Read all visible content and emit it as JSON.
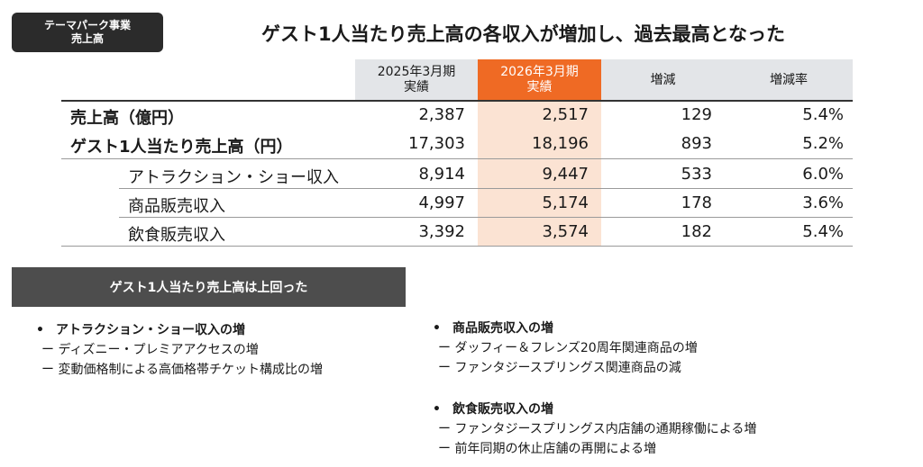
{
  "tag": {
    "line1": "テーマパーク事業",
    "line2": "売上高"
  },
  "title": "ゲスト1人当たり売上高の各収入が増加し、過去最高となった",
  "table": {
    "headers": [
      {
        "line1": "2025年3月期",
        "line2": "実績"
      },
      {
        "line1": "2026年3月期",
        "line2": "実績"
      },
      {
        "line1": "増減",
        "line2": ""
      },
      {
        "line1": "増減率",
        "line2": ""
      }
    ],
    "rows": [
      {
        "label": "売上高（億円）",
        "v1": "2,387",
        "v2": "2,517",
        "diff": "129",
        "rate": "5.4%"
      },
      {
        "label": "ゲスト1人当たり売上高（円）",
        "v1": "17,303",
        "v2": "18,196",
        "diff": "893",
        "rate": "5.2%"
      },
      {
        "label": "アトラクション・ショー収入",
        "v1": "8,914",
        "v2": "9,447",
        "diff": "533",
        "rate": "6.0%"
      },
      {
        "label": "商品販売収入",
        "v1": "4,997",
        "v2": "5,174",
        "diff": "178",
        "rate": "3.6%"
      },
      {
        "label": "飲食販売収入",
        "v1": "3,392",
        "v2": "3,574",
        "diff": "182",
        "rate": "5.4%"
      }
    ]
  },
  "banner": "ゲスト1人当たり売上高は上回った",
  "bullets": [
    {
      "bullet": "•",
      "head": "アトラクション・ショー収入の増",
      "subs": [
        "ー ディズニー・プレミアアクセスの増",
        "ー 変動価格制による高価格帯チケット構成比の増"
      ]
    },
    {
      "bullet": "•",
      "head": "商品販売収入の増",
      "subs": [
        "ー ダッフィー＆フレンズ20周年関連商品の増",
        "ー ファンタジースプリングス関連商品の減"
      ]
    },
    {
      "bullet": "•",
      "head": "飲食販売収入の増",
      "subs": [
        "ー ファンタジースプリングス内店舗の通期稼働による増",
        "ー 前年同期の休止店舗の再開による増"
      ]
    }
  ],
  "colors": {
    "accent": "#ef6a24",
    "accent_light": "#fbe3d3",
    "header_gray": "#e3e5e8",
    "dark": "#2b2b2b"
  }
}
